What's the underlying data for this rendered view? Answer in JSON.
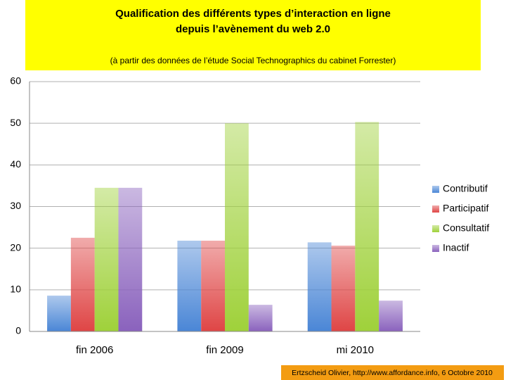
{
  "chart_data": {
    "type": "bar",
    "title": [
      "Qualification des différents types d’interaction en ligne",
      "depuis l’avènement du web 2.0"
    ],
    "subtitle": "(à partir des données de l’étude Social Technographics du cabinet Forrester)",
    "categories": [
      "fin 2006",
      "fin 2009",
      "mi 2010"
    ],
    "series": [
      {
        "name": "Contributif",
        "color": "#4a86d6",
        "values": [
          8.6,
          21.8,
          21.4
        ]
      },
      {
        "name": "Participatif",
        "color": "#df4545",
        "values": [
          22.5,
          21.8,
          20.6
        ]
      },
      {
        "name": "Consultatif",
        "color": "#9fd13a",
        "values": [
          34.5,
          50,
          50.3
        ]
      },
      {
        "name": "Inactif",
        "color": "#8a62bd",
        "values": [
          34.5,
          6.4,
          7.4
        ]
      }
    ],
    "ylim": [
      0,
      60
    ],
    "yticks": [
      0,
      10,
      20,
      30,
      40,
      50,
      60
    ],
    "grid": true,
    "legend": "right",
    "footer": "Ertzscheid Olivier, http://www.affordance.info, 6 Octobre 2010"
  }
}
